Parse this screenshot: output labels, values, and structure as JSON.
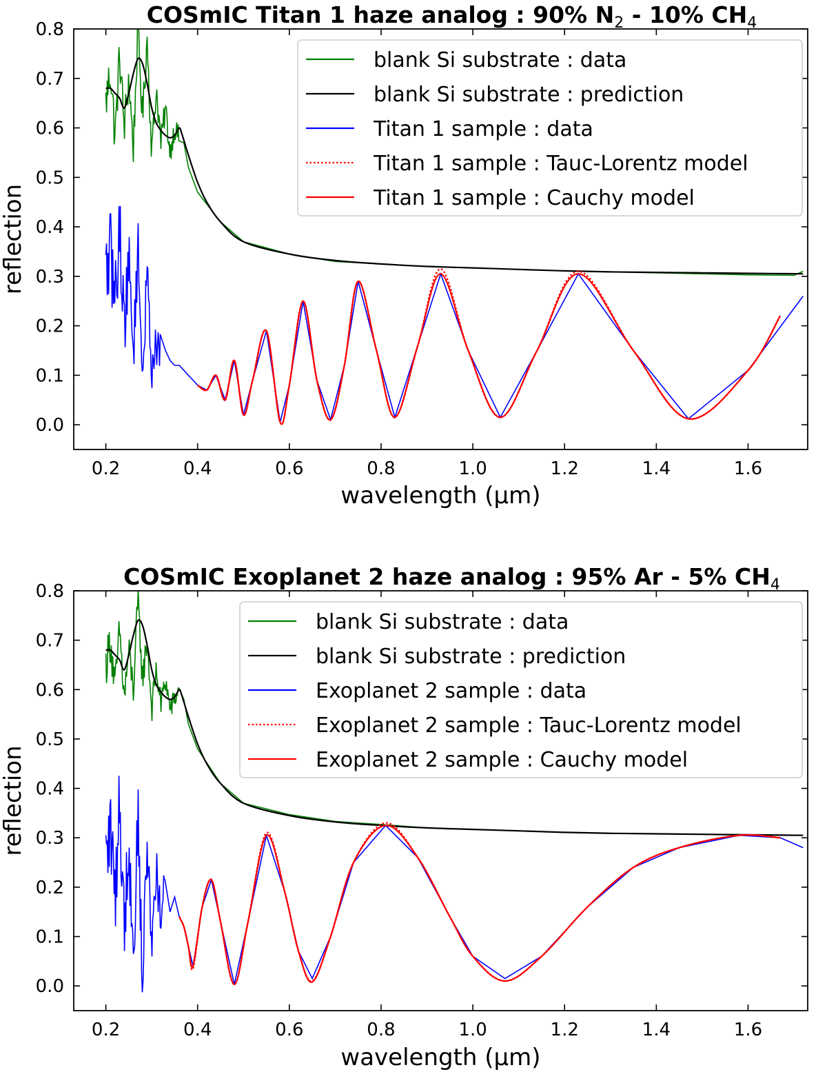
{
  "chart_data": [
    {
      "type": "line",
      "title": "COSmIC Titan 1 haze analog : 90% N₂ - 10% CH₄",
      "title_parts": [
        {
          "t": "COSmIC Titan 1 haze analog : 90% N"
        },
        {
          "t": "2",
          "sub": true
        },
        {
          "t": " - 10% CH"
        },
        {
          "t": "4",
          "sub": true
        }
      ],
      "xlabel": "wavelength (μm)",
      "ylabel": "reflection",
      "xlim": [
        0.13,
        1.73
      ],
      "ylim": [
        -0.05,
        0.8
      ],
      "xticks": [
        0.2,
        0.4,
        0.6,
        0.8,
        1.0,
        1.2,
        1.4,
        1.6
      ],
      "xtick_labels": [
        "0.2",
        "0.4",
        "0.6",
        "0.8",
        "1.0",
        "1.2",
        "1.4",
        "1.6"
      ],
      "yticks": [
        0.0,
        0.1,
        0.2,
        0.3,
        0.4,
        0.5,
        0.6,
        0.7,
        0.8
      ],
      "ytick_labels": [
        "0.0",
        "0.1",
        "0.2",
        "0.3",
        "0.4",
        "0.5",
        "0.6",
        "0.7",
        "0.8"
      ],
      "legend_position": "top-right",
      "series": [
        {
          "name": "blank Si substrate : data",
          "color": "#008000",
          "style": "solid",
          "x": [
            0.2,
            0.21,
            0.22,
            0.23,
            0.24,
            0.25,
            0.26,
            0.27,
            0.28,
            0.29,
            0.3,
            0.31,
            0.32,
            0.33,
            0.34,
            0.35,
            0.36,
            0.37,
            0.38,
            0.4,
            0.45,
            0.5,
            0.6,
            0.7,
            0.8,
            0.9,
            1.0,
            1.1,
            1.2,
            1.3,
            1.4,
            1.5,
            1.6,
            1.7,
            1.72
          ],
          "y": [
            0.65,
            0.72,
            0.58,
            0.75,
            0.6,
            0.7,
            0.56,
            0.8,
            0.62,
            0.78,
            0.55,
            0.68,
            0.57,
            0.64,
            0.55,
            0.6,
            0.58,
            0.57,
            0.52,
            0.47,
            0.41,
            0.37,
            0.345,
            0.33,
            0.325,
            0.32,
            0.317,
            0.314,
            0.311,
            0.309,
            0.307,
            0.305,
            0.303,
            0.302,
            0.31
          ],
          "noise": 0.05,
          "noise_until": 0.36
        },
        {
          "name": "blank Si substrate : prediction",
          "color": "#000000",
          "style": "solid",
          "x": [
            0.2,
            0.21,
            0.22,
            0.23,
            0.24,
            0.25,
            0.26,
            0.27,
            0.28,
            0.29,
            0.3,
            0.31,
            0.32,
            0.33,
            0.34,
            0.35,
            0.36,
            0.365,
            0.37,
            0.38,
            0.4,
            0.42,
            0.45,
            0.5,
            0.6,
            0.7,
            0.8,
            0.9,
            1.0,
            1.1,
            1.2,
            1.3,
            1.4,
            1.5,
            1.6,
            1.72
          ],
          "y": [
            0.68,
            0.68,
            0.67,
            0.66,
            0.64,
            0.67,
            0.71,
            0.74,
            0.73,
            0.69,
            0.64,
            0.61,
            0.595,
            0.585,
            0.58,
            0.585,
            0.6,
            0.59,
            0.575,
            0.545,
            0.49,
            0.45,
            0.41,
            0.37,
            0.345,
            0.332,
            0.325,
            0.32,
            0.317,
            0.314,
            0.311,
            0.309,
            0.308,
            0.307,
            0.306,
            0.305
          ]
        },
        {
          "name": "Titan 1 sample : data",
          "color": "#0000ff",
          "style": "solid",
          "x": [
            0.2,
            0.21,
            0.22,
            0.23,
            0.24,
            0.25,
            0.26,
            0.27,
            0.28,
            0.29,
            0.3,
            0.31,
            0.32,
            0.33,
            0.34,
            0.35,
            0.36,
            0.37,
            0.38,
            0.39,
            0.4,
            0.42,
            0.44,
            0.46,
            0.48,
            0.5,
            0.52,
            0.55,
            0.58,
            0.6,
            0.63,
            0.66,
            0.69,
            0.72,
            0.75,
            0.79,
            0.83,
            0.88,
            0.93,
            0.99,
            1.06,
            1.14,
            1.23,
            1.35,
            1.47,
            1.6,
            1.72
          ],
          "y": [
            0.3,
            0.35,
            0.25,
            0.4,
            0.2,
            0.33,
            0.15,
            0.36,
            0.1,
            0.3,
            0.12,
            0.16,
            0.14,
            0.15,
            0.13,
            0.12,
            0.12,
            0.11,
            0.1,
            0.09,
            0.08,
            0.07,
            0.1,
            0.05,
            0.13,
            0.02,
            0.09,
            0.19,
            0.005,
            0.08,
            0.25,
            0.09,
            0.01,
            0.12,
            0.29,
            0.15,
            0.015,
            0.16,
            0.305,
            0.15,
            0.015,
            0.15,
            0.305,
            0.15,
            0.012,
            0.11,
            0.26
          ],
          "noise": 0.09,
          "noise_until": 0.32
        },
        {
          "name": "Titan 1 sample : Tauc-Lorentz model",
          "color": "#ff0000",
          "style": "dotted",
          "x": [
            0.4,
            0.42,
            0.44,
            0.46,
            0.48,
            0.5,
            0.52,
            0.55,
            0.58,
            0.6,
            0.63,
            0.66,
            0.69,
            0.72,
            0.75,
            0.79,
            0.83,
            0.88,
            0.93,
            0.99,
            1.06,
            1.14,
            1.23,
            1.35,
            1.47,
            1.6,
            1.67
          ],
          "y": [
            0.08,
            0.07,
            0.1,
            0.05,
            0.13,
            0.02,
            0.09,
            0.19,
            0.005,
            0.08,
            0.25,
            0.09,
            0.01,
            0.12,
            0.29,
            0.15,
            0.015,
            0.16,
            0.315,
            0.15,
            0.015,
            0.15,
            0.31,
            0.15,
            0.012,
            0.11,
            0.22
          ]
        },
        {
          "name": "Titan 1 sample : Cauchy model",
          "color": "#ff0000",
          "style": "solid",
          "x": [
            0.4,
            0.42,
            0.44,
            0.46,
            0.48,
            0.5,
            0.52,
            0.55,
            0.58,
            0.6,
            0.63,
            0.66,
            0.69,
            0.72,
            0.75,
            0.79,
            0.83,
            0.88,
            0.93,
            0.99,
            1.06,
            1.14,
            1.23,
            1.35,
            1.47,
            1.6,
            1.67
          ],
          "y": [
            0.08,
            0.07,
            0.1,
            0.05,
            0.13,
            0.02,
            0.09,
            0.19,
            0.005,
            0.08,
            0.25,
            0.09,
            0.01,
            0.12,
            0.29,
            0.15,
            0.015,
            0.16,
            0.305,
            0.15,
            0.015,
            0.15,
            0.305,
            0.15,
            0.012,
            0.11,
            0.22
          ]
        }
      ]
    },
    {
      "type": "line",
      "title": "COSmIC Exoplanet 2 haze analog : 95% Ar - 5% CH₄",
      "title_parts": [
        {
          "t": "COSmIC Exoplanet 2 haze analog : 95% Ar - 5% CH"
        },
        {
          "t": "4",
          "sub": true
        }
      ],
      "xlabel": "wavelength (μm)",
      "ylabel": "reflection",
      "xlim": [
        0.13,
        1.73
      ],
      "ylim": [
        -0.05,
        0.8
      ],
      "xticks": [
        0.2,
        0.4,
        0.6,
        0.8,
        1.0,
        1.2,
        1.4,
        1.6
      ],
      "xtick_labels": [
        "0.2",
        "0.4",
        "0.6",
        "0.8",
        "1.0",
        "1.2",
        "1.4",
        "1.6"
      ],
      "yticks": [
        0.0,
        0.1,
        0.2,
        0.3,
        0.4,
        0.5,
        0.6,
        0.7,
        0.8
      ],
      "ytick_labels": [
        "0.0",
        "0.1",
        "0.2",
        "0.3",
        "0.4",
        "0.5",
        "0.6",
        "0.7",
        "0.8"
      ],
      "legend_position": "top-right",
      "series": [
        {
          "name": "blank Si substrate : data",
          "color": "#008000",
          "style": "solid",
          "x": [
            0.2,
            0.21,
            0.22,
            0.23,
            0.24,
            0.25,
            0.26,
            0.27,
            0.28,
            0.29,
            0.3,
            0.31,
            0.32,
            0.33,
            0.34,
            0.35,
            0.36,
            0.37,
            0.38,
            0.4,
            0.45,
            0.5,
            0.6,
            0.7,
            0.8,
            0.9,
            1.0,
            1.1,
            1.2,
            1.3,
            1.4,
            1.5,
            1.6,
            1.72
          ],
          "y": [
            0.65,
            0.7,
            0.6,
            0.72,
            0.58,
            0.68,
            0.6,
            0.78,
            0.62,
            0.7,
            0.56,
            0.64,
            0.57,
            0.62,
            0.56,
            0.58,
            0.6,
            0.58,
            0.53,
            0.48,
            0.41,
            0.37,
            0.347,
            0.333,
            0.327,
            0.32,
            0.317,
            0.314,
            0.311,
            0.309,
            0.308,
            0.307,
            0.306,
            0.305
          ],
          "noise": 0.045,
          "noise_until": 0.36
        },
        {
          "name": "blank Si substrate : prediction",
          "color": "#000000",
          "style": "solid",
          "x": [
            0.2,
            0.21,
            0.22,
            0.23,
            0.24,
            0.25,
            0.26,
            0.27,
            0.28,
            0.29,
            0.3,
            0.31,
            0.32,
            0.33,
            0.34,
            0.35,
            0.36,
            0.365,
            0.37,
            0.38,
            0.4,
            0.42,
            0.45,
            0.5,
            0.6,
            0.7,
            0.8,
            0.9,
            1.0,
            1.1,
            1.2,
            1.3,
            1.4,
            1.5,
            1.6,
            1.72
          ],
          "y": [
            0.68,
            0.68,
            0.67,
            0.66,
            0.64,
            0.67,
            0.71,
            0.74,
            0.73,
            0.69,
            0.64,
            0.61,
            0.595,
            0.585,
            0.58,
            0.585,
            0.6,
            0.59,
            0.575,
            0.545,
            0.49,
            0.45,
            0.41,
            0.37,
            0.345,
            0.332,
            0.325,
            0.32,
            0.317,
            0.314,
            0.311,
            0.309,
            0.308,
            0.307,
            0.306,
            0.305
          ]
        },
        {
          "name": "Exoplanet 2 sample : data",
          "color": "#0000ff",
          "style": "solid",
          "x": [
            0.2,
            0.21,
            0.22,
            0.23,
            0.24,
            0.25,
            0.26,
            0.27,
            0.28,
            0.29,
            0.3,
            0.31,
            0.32,
            0.33,
            0.34,
            0.35,
            0.36,
            0.37,
            0.38,
            0.39,
            0.41,
            0.43,
            0.45,
            0.48,
            0.51,
            0.55,
            0.59,
            0.62,
            0.65,
            0.69,
            0.74,
            0.81,
            0.88,
            0.95,
            1.0,
            1.07,
            1.15,
            1.25,
            1.35,
            1.45,
            1.58,
            1.67,
            1.72
          ],
          "y": [
            0.25,
            0.32,
            0.18,
            0.38,
            0.12,
            0.3,
            0.05,
            0.35,
            0.0,
            0.3,
            0.08,
            0.25,
            0.12,
            0.22,
            0.15,
            0.18,
            0.14,
            0.12,
            0.08,
            0.04,
            0.16,
            0.215,
            0.13,
            0.003,
            0.13,
            0.305,
            0.19,
            0.07,
            0.015,
            0.1,
            0.25,
            0.325,
            0.26,
            0.14,
            0.06,
            0.015,
            0.06,
            0.16,
            0.24,
            0.28,
            0.305,
            0.3,
            0.28
          ],
          "noise": 0.1,
          "noise_until": 0.33
        },
        {
          "name": "Exoplanet 2 sample : Tauc-Lorentz model",
          "color": "#ff0000",
          "style": "dotted",
          "x": [
            0.36,
            0.37,
            0.38,
            0.39,
            0.41,
            0.43,
            0.45,
            0.48,
            0.51,
            0.55,
            0.59,
            0.62,
            0.65,
            0.69,
            0.74,
            0.81,
            0.88,
            0.95,
            1.0,
            1.07,
            1.15,
            1.25,
            1.35,
            1.45,
            1.58,
            1.67
          ],
          "y": [
            0.14,
            0.12,
            0.08,
            0.035,
            0.16,
            0.215,
            0.13,
            0.003,
            0.13,
            0.31,
            0.19,
            0.07,
            0.01,
            0.1,
            0.25,
            0.33,
            0.26,
            0.14,
            0.06,
            0.01,
            0.06,
            0.16,
            0.24,
            0.28,
            0.305,
            0.3
          ]
        },
        {
          "name": "Exoplanet 2 sample : Cauchy model",
          "color": "#ff0000",
          "style": "solid",
          "x": [
            0.36,
            0.37,
            0.38,
            0.39,
            0.41,
            0.43,
            0.45,
            0.48,
            0.51,
            0.55,
            0.59,
            0.62,
            0.65,
            0.69,
            0.74,
            0.81,
            0.88,
            0.95,
            1.0,
            1.07,
            1.15,
            1.25,
            1.35,
            1.45,
            1.58,
            1.67
          ],
          "y": [
            0.14,
            0.12,
            0.08,
            0.04,
            0.16,
            0.215,
            0.13,
            0.003,
            0.13,
            0.305,
            0.19,
            0.07,
            0.008,
            0.1,
            0.25,
            0.325,
            0.26,
            0.14,
            0.06,
            0.01,
            0.06,
            0.16,
            0.24,
            0.28,
            0.305,
            0.3
          ]
        }
      ]
    }
  ]
}
